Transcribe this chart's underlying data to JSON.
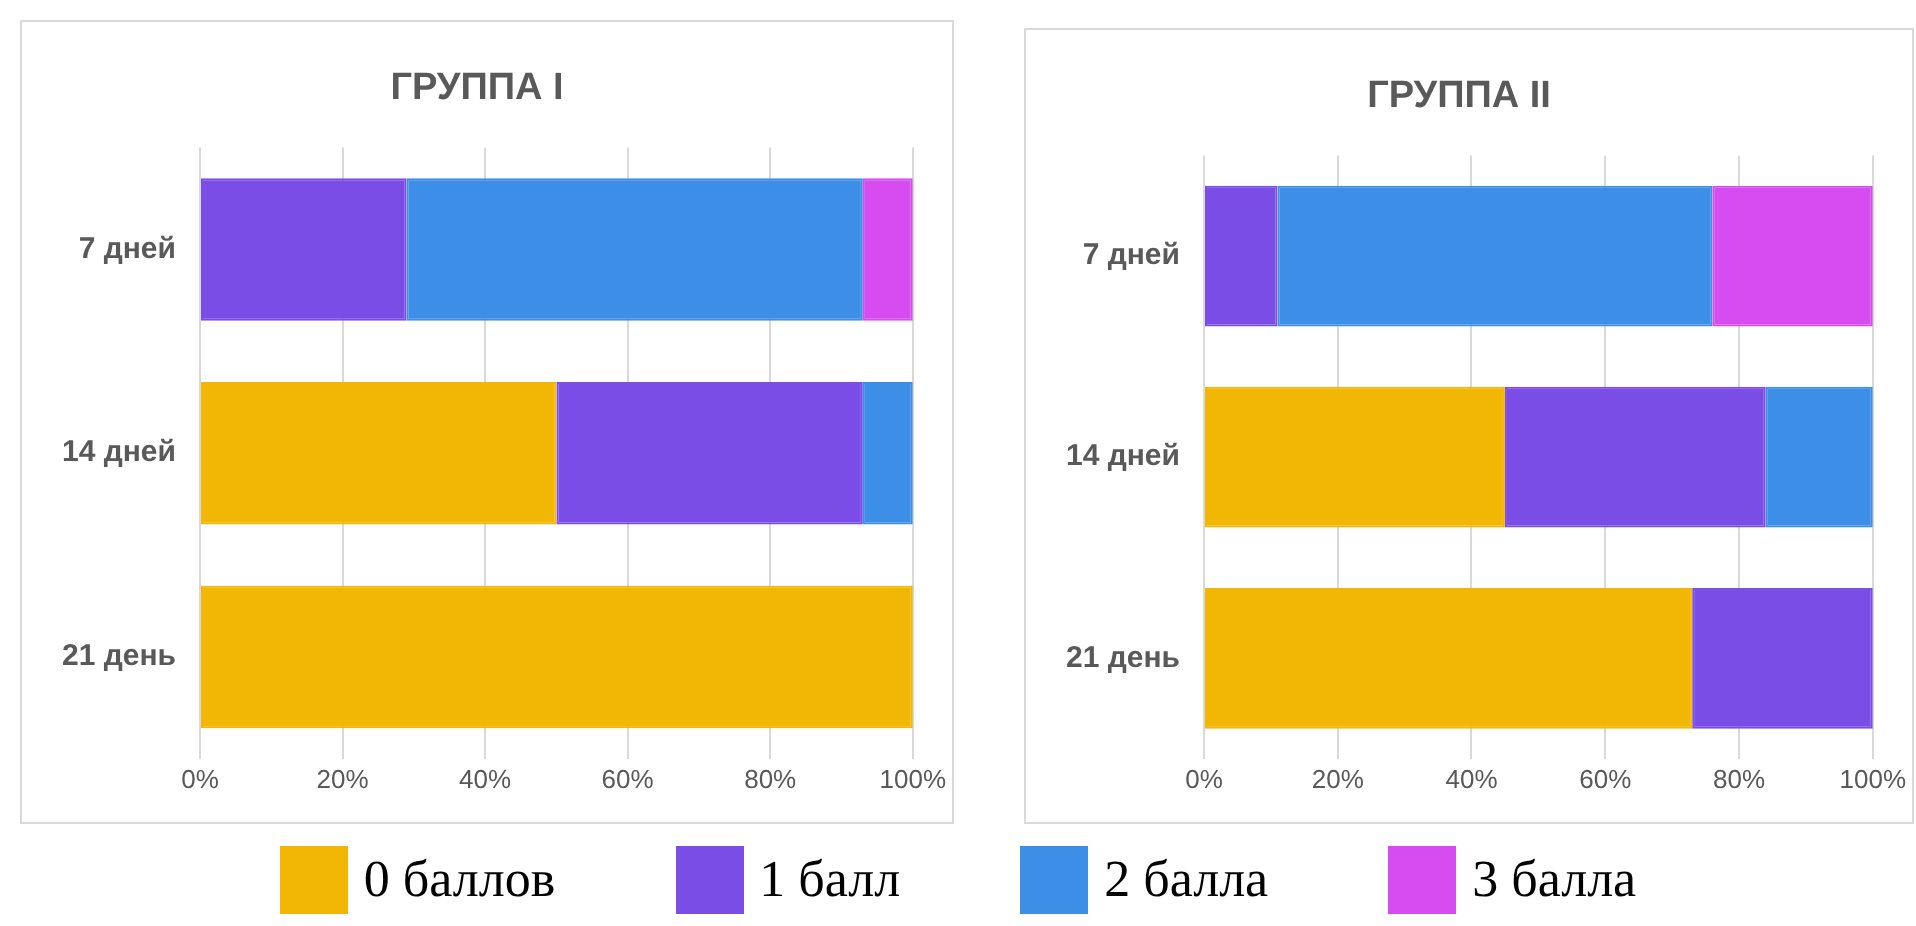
{
  "chart_data": [
    {
      "type": "bar",
      "orientation": "horizontal",
      "stacked": true,
      "title": "ГРУППА I",
      "categories": [
        "7 дней",
        "14 дней",
        "21 день"
      ],
      "series": [
        {
          "name": "0 баллов",
          "color": "#f2b705",
          "values": [
            0,
            50,
            100
          ]
        },
        {
          "name": "1 балл",
          "color": "#7a4ee6",
          "values": [
            29,
            43,
            0
          ]
        },
        {
          "name": "2 балла",
          "color": "#3d8ee6",
          "values": [
            64,
            7,
            0
          ]
        },
        {
          "name": "3 балла",
          "color": "#d64cf0",
          "values": [
            7,
            0,
            0
          ]
        }
      ],
      "xlim": [
        0,
        100
      ],
      "xticks": [
        {
          "value": 0,
          "label": "0%"
        },
        {
          "value": 20,
          "label": "20%"
        },
        {
          "value": 40,
          "label": "40%"
        },
        {
          "value": 60,
          "label": "60%"
        },
        {
          "value": 80,
          "label": "80%"
        },
        {
          "value": 100,
          "label": "100%"
        }
      ],
      "grid": "x",
      "legend": "bottom"
    },
    {
      "type": "bar",
      "orientation": "horizontal",
      "stacked": true,
      "title": "ГРУППА II",
      "categories": [
        "7 дней",
        "14 дней",
        "21 день"
      ],
      "series": [
        {
          "color": "#f2b705",
          "values": [
            0,
            45,
            73
          ]
        },
        {
          "color": "#7a4ee6",
          "values": [
            11,
            39,
            27
          ]
        },
        {
          "color": "#3d8ee6",
          "values": [
            65,
            16,
            0
          ]
        },
        {
          "color": "#d64cf0",
          "values": [
            24,
            0,
            0
          ]
        }
      ],
      "xlim": [
        0,
        100
      ],
      "xticks": [
        {
          "value": 0,
          "label": "0%"
        },
        {
          "value": 20,
          "label": "20%"
        },
        {
          "value": 40,
          "label": "40%"
        },
        {
          "value": 60,
          "label": "60%"
        },
        {
          "value": 80,
          "label": "80%"
        },
        {
          "value": 100,
          "label": "100%"
        }
      ],
      "grid": "x"
    }
  ]
}
